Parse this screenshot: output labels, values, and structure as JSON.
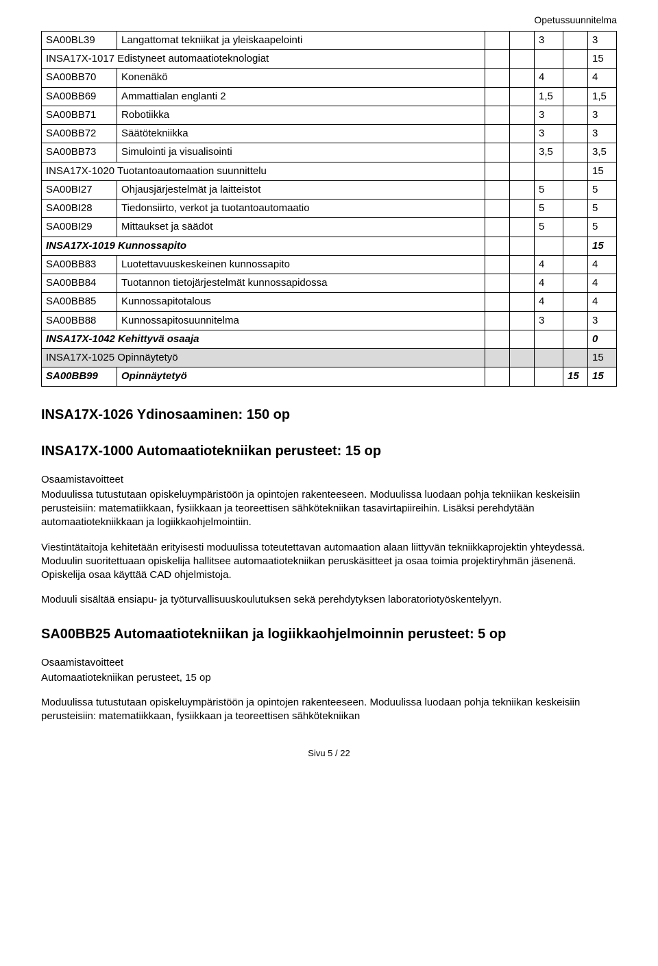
{
  "header": {
    "right": "Opetussuunnitelma"
  },
  "table": {
    "rows": [
      {
        "code": "SA00BL39",
        "name": "Langattomat tekniikat ja yleiskaapelointi",
        "c1": "",
        "c2": "",
        "c3": "3",
        "c4": "",
        "c5": "3",
        "bold": false,
        "italic": false,
        "shaded": false
      },
      {
        "code": "INSA17X-1017 Edistyneet automaatioteknologiat",
        "name": "",
        "span": true,
        "c1": "",
        "c2": "",
        "c3": "",
        "c4": "",
        "c5": "15",
        "bold": false,
        "italic": false,
        "shaded": false
      },
      {
        "code": "SA00BB70",
        "name": "Konenäkö",
        "c1": "",
        "c2": "",
        "c3": "4",
        "c4": "",
        "c5": "4",
        "bold": false,
        "italic": false,
        "shaded": false
      },
      {
        "code": "SA00BB69",
        "name": "Ammattialan englanti 2",
        "c1": "",
        "c2": "",
        "c3": "1,5",
        "c4": "",
        "c5": "1,5",
        "bold": false,
        "italic": false,
        "shaded": false
      },
      {
        "code": "SA00BB71",
        "name": "Robotiikka",
        "c1": "",
        "c2": "",
        "c3": "3",
        "c4": "",
        "c5": "3",
        "bold": false,
        "italic": false,
        "shaded": false
      },
      {
        "code": "SA00BB72",
        "name": "Säätötekniikka",
        "c1": "",
        "c2": "",
        "c3": "3",
        "c4": "",
        "c5": "3",
        "bold": false,
        "italic": false,
        "shaded": false
      },
      {
        "code": "SA00BB73",
        "name": "Simulointi ja visualisointi",
        "c1": "",
        "c2": "",
        "c3": "3,5",
        "c4": "",
        "c5": "3,5",
        "bold": false,
        "italic": false,
        "shaded": false
      },
      {
        "code": "INSA17X-1020 Tuotantoautomaation suunnittelu",
        "name": "",
        "span": true,
        "c1": "",
        "c2": "",
        "c3": "",
        "c4": "",
        "c5": "15",
        "bold": false,
        "italic": false,
        "shaded": false
      },
      {
        "code": "SA00BI27",
        "name": "Ohjausjärjestelmät ja laitteistot",
        "c1": "",
        "c2": "",
        "c3": "5",
        "c4": "",
        "c5": "5",
        "bold": false,
        "italic": false,
        "shaded": false
      },
      {
        "code": "SA00BI28",
        "name": "Tiedonsiirto, verkot ja tuotantoautomaatio",
        "c1": "",
        "c2": "",
        "c3": "5",
        "c4": "",
        "c5": "5",
        "bold": false,
        "italic": false,
        "shaded": false
      },
      {
        "code": "SA00BI29",
        "name": "Mittaukset ja säädöt",
        "c1": "",
        "c2": "",
        "c3": "5",
        "c4": "",
        "c5": "5",
        "bold": false,
        "italic": false,
        "shaded": false
      },
      {
        "code": "INSA17X-1019 Kunnossapito",
        "name": "",
        "span": true,
        "c1": "",
        "c2": "",
        "c3": "",
        "c4": "",
        "c5": "15",
        "bold": true,
        "italic": true,
        "shaded": false
      },
      {
        "code": "SA00BB83",
        "name": "Luotettavuuskeskeinen kunnossapito",
        "c1": "",
        "c2": "",
        "c3": "4",
        "c4": "",
        "c5": "4",
        "bold": false,
        "italic": false,
        "shaded": false
      },
      {
        "code": "SA00BB84",
        "name": "Tuotannon tietojärjestelmät kunnossapidossa",
        "c1": "",
        "c2": "",
        "c3": "4",
        "c4": "",
        "c5": "4",
        "bold": false,
        "italic": false,
        "shaded": false
      },
      {
        "code": "SA00BB85",
        "name": "Kunnossapitotalous",
        "c1": "",
        "c2": "",
        "c3": "4",
        "c4": "",
        "c5": "4",
        "bold": false,
        "italic": false,
        "shaded": false
      },
      {
        "code": "SA00BB88",
        "name": "Kunnossapitosuunnitelma",
        "c1": "",
        "c2": "",
        "c3": "3",
        "c4": "",
        "c5": "3",
        "bold": false,
        "italic": false,
        "shaded": false
      },
      {
        "code": "INSA17X-1042 Kehittyvä osaaja",
        "name": "",
        "span": true,
        "c1": "",
        "c2": "",
        "c3": "",
        "c4": "",
        "c5": "0",
        "bold": true,
        "italic": true,
        "shaded": false
      },
      {
        "code": "INSA17X-1025 Opinnäytetyö",
        "name": "",
        "span": true,
        "c1": "",
        "c2": "",
        "c3": "",
        "c4": "",
        "c5": "15",
        "bold": false,
        "italic": false,
        "shaded": true
      },
      {
        "code": "SA00BB99",
        "name": "Opinnäytetyö",
        "c1": "",
        "c2": "",
        "c3": "",
        "c4": "15",
        "c5": "15",
        "bold": true,
        "italic": true,
        "shaded": false
      }
    ]
  },
  "h1": "INSA17X-1026 Ydinosaaminen: 150 op",
  "h2": "INSA17X-1000 Automaatiotekniikan perusteet: 15 op",
  "goalsLabel": "Osaamistavoitteet",
  "para1": "Moduulissa tutustutaan opiskeluympäristöön ja opintojen rakenteeseen. Moduulissa luodaan pohja tekniikan keskeisiin perusteisiin: matematiikkaan, fysiikkaan ja teoreettisen sähkötekniikan tasavirtapiireihin. Lisäksi perehdytään automaatiotekniikkaan ja logiikkaohjelmointiin.",
  "para2": "Viestintätaitoja kehitetään erityisesti moduulissa toteutettavan automaation alaan liittyvän tekniikkaprojektin yhteydessä. Moduulin suoritettuaan opiskelija hallitsee automaatiotekniikan peruskäsitteet ja osaa toimia projektiryhmän jäsenenä. Opiskelija osaa käyttää CAD ohjelmistoja.",
  "para3": "Moduuli sisältää ensiapu- ja työturvallisuuskoulutuksen sekä perehdytyksen laboratoriotyöskentelyyn.",
  "h3": "SA00BB25 Automaatiotekniikan ja logiikkaohjelmoinnin perusteet: 5 op",
  "para4a": "Automaatiotekniikan perusteet, 15 op",
  "para4b": "Moduulissa tutustutaan opiskeluympäristöön ja opintojen rakenteeseen. Moduulissa luodaan pohja tekniikan keskeisiin perusteisiin: matematiikkaan, fysiikkaan ja teoreettisen sähkötekniikan",
  "footer": "Sivu 5 / 22"
}
